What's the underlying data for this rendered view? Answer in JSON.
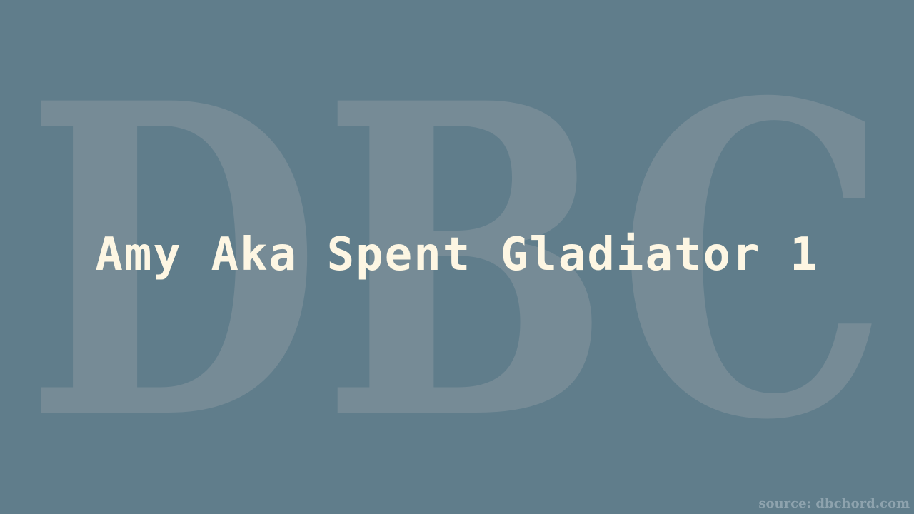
{
  "watermark": {
    "text": "DBC",
    "color": "#7a8e99"
  },
  "title": {
    "text": "Amy Aka Spent Gladiator 1",
    "color": "#fdf6e3"
  },
  "source": {
    "text": "source: dbchord.com"
  },
  "colors": {
    "background": "#607d8b"
  }
}
